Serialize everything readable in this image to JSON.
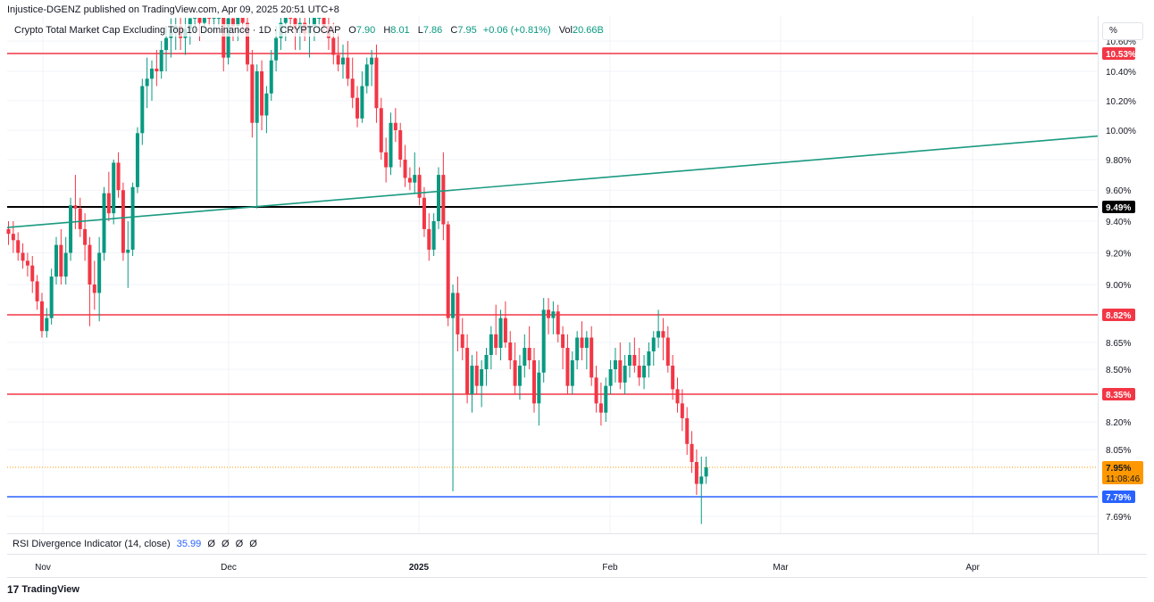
{
  "header": {
    "published_line": "Injustice-DGENZ published on TradingView.com, Apr 09, 2025 20:51 UTC+8"
  },
  "legend": {
    "symbol": "Crypto Total Market Cap Excluding Top 10 Dominance · 1D · CRYPTOCAP",
    "open_label": "O",
    "open_value": "7.90",
    "high_label": "H",
    "high_value": "8.01",
    "low_label": "L",
    "low_value": "7.86",
    "close_label": "C",
    "close_value": "7.95",
    "change": "+0.06 (+0.81%)",
    "vol_label": "Vol",
    "vol_value": "20.66B"
  },
  "scale_button": "%",
  "indicator": {
    "name": "RSI Divergence Indicator (14, close)",
    "value": "35.99",
    "placeholders": [
      "Ø",
      "Ø",
      "Ø",
      "Ø"
    ]
  },
  "footer": {
    "brand": "TradingView",
    "logo": "17"
  },
  "colors": {
    "up": "#089981",
    "down": "#f23645",
    "red_level": "#f23645",
    "black_level": "#000000",
    "blue_level": "#2962ff",
    "trendline": "#1a9a80",
    "current_price": "#ff9800"
  },
  "chart_data": {
    "type": "candlestick",
    "y_unit": "%",
    "ylim": [
      7.62,
      10.66
    ],
    "y_ticks": [
      "10.60%",
      "10.40%",
      "10.20%",
      "10.00%",
      "9.80%",
      "9.60%",
      "9.40%",
      "9.20%",
      "9.00%",
      "8.65%",
      "8.50%",
      "8.20%",
      "8.05%",
      "7.69%"
    ],
    "x_labels": [
      "Nov",
      "Dec",
      "2025",
      "Feb",
      "Mar",
      "Apr"
    ],
    "horizontal_levels": [
      {
        "value": 10.53,
        "label": "10.53%",
        "color": "#f23645"
      },
      {
        "value": 9.49,
        "label": "9.49%",
        "color": "#000000"
      },
      {
        "value": 8.82,
        "label": "8.82%",
        "color": "#f23645"
      },
      {
        "value": 8.35,
        "label": "8.35%",
        "color": "#f23645"
      },
      {
        "value": 7.79,
        "label": "7.79%",
        "color": "#2962ff"
      }
    ],
    "current_price": {
      "value": 7.95,
      "label": "7.95%",
      "countdown": "11:08:46"
    },
    "trendline": {
      "start": {
        "date": "Oct 24",
        "value": 9.36
      },
      "end": {
        "date": "Apr 20",
        "value": 9.96
      }
    },
    "candles_note": "Approximate daily OHLC read from the chart; dates are implicit sequential days starting Oct 24",
    "candles": [
      [
        9.35,
        9.4,
        9.25,
        9.32
      ],
      [
        9.32,
        9.4,
        9.2,
        9.28
      ],
      [
        9.28,
        9.33,
        9.15,
        9.2
      ],
      [
        9.2,
        9.26,
        9.1,
        9.15
      ],
      [
        9.15,
        9.2,
        9.05,
        9.12
      ],
      [
        9.12,
        9.18,
        8.95,
        9.02
      ],
      [
        9.02,
        9.06,
        8.85,
        8.9
      ],
      [
        8.9,
        8.95,
        8.68,
        8.72
      ],
      [
        8.72,
        8.86,
        8.68,
        8.8
      ],
      [
        8.8,
        9.1,
        8.76,
        9.05
      ],
      [
        9.05,
        9.3,
        9.0,
        9.25
      ],
      [
        9.25,
        9.35,
        9.0,
        9.05
      ],
      [
        9.05,
        9.3,
        9.0,
        9.2
      ],
      [
        9.2,
        9.55,
        9.15,
        9.5
      ],
      [
        9.5,
        9.7,
        9.35,
        9.48
      ],
      [
        9.48,
        9.55,
        9.3,
        9.35
      ],
      [
        9.35,
        9.45,
        9.15,
        9.25
      ],
      [
        9.25,
        9.3,
        8.75,
        9.0
      ],
      [
        9.0,
        9.15,
        8.85,
        8.95
      ],
      [
        8.95,
        9.3,
        8.78,
        9.2
      ],
      [
        9.2,
        9.62,
        9.15,
        9.58
      ],
      [
        9.58,
        9.72,
        9.4,
        9.45
      ],
      [
        9.45,
        9.8,
        9.38,
        9.78
      ],
      [
        9.78,
        9.85,
        9.55,
        9.6
      ],
      [
        9.6,
        9.65,
        9.15,
        9.2
      ],
      [
        9.2,
        9.4,
        8.98,
        9.22
      ],
      [
        9.22,
        9.65,
        9.18,
        9.62
      ],
      [
        9.62,
        10.02,
        9.58,
        9.98
      ],
      [
        9.98,
        10.35,
        9.9,
        10.3
      ],
      [
        10.3,
        10.5,
        10.15,
        10.35
      ],
      [
        10.35,
        10.48,
        10.2,
        10.42
      ],
      [
        10.42,
        10.55,
        10.3,
        10.4
      ],
      [
        10.4,
        10.6,
        10.35,
        10.55
      ],
      [
        10.55,
        10.7,
        10.4,
        10.62
      ],
      [
        10.62,
        10.75,
        10.5,
        10.68
      ],
      [
        10.68,
        10.8,
        10.55,
        10.7
      ],
      [
        10.7,
        10.82,
        10.55,
        10.62
      ],
      [
        10.62,
        10.78,
        10.52,
        10.68
      ],
      [
        10.68,
        10.85,
        10.58,
        10.75
      ],
      [
        10.75,
        10.9,
        10.65,
        10.8
      ],
      [
        10.8,
        10.92,
        10.6,
        10.72
      ],
      [
        10.72,
        10.9,
        10.65,
        10.85
      ],
      [
        10.85,
        10.95,
        10.7,
        10.78
      ],
      [
        10.78,
        10.88,
        10.65,
        10.82
      ],
      [
        10.82,
        10.95,
        10.7,
        10.88
      ],
      [
        10.88,
        10.95,
        10.4,
        10.5
      ],
      [
        10.5,
        10.8,
        10.45,
        10.75
      ],
      [
        10.75,
        10.85,
        10.6,
        10.7
      ],
      [
        10.7,
        10.85,
        10.6,
        10.78
      ],
      [
        10.78,
        10.9,
        10.65,
        10.72
      ],
      [
        10.72,
        10.85,
        10.4,
        10.45
      ],
      [
        10.45,
        10.55,
        9.95,
        10.05
      ],
      [
        10.05,
        10.45,
        9.48,
        10.4
      ],
      [
        10.4,
        10.48,
        10.0,
        10.1
      ],
      [
        10.1,
        10.3,
        9.98,
        10.25
      ],
      [
        10.25,
        10.55,
        10.2,
        10.48
      ],
      [
        10.48,
        10.7,
        10.4,
        10.62
      ],
      [
        10.62,
        10.8,
        10.55,
        10.72
      ],
      [
        10.72,
        10.85,
        10.6,
        10.8
      ],
      [
        10.8,
        10.9,
        10.68,
        10.75
      ],
      [
        10.75,
        10.85,
        10.55,
        10.68
      ],
      [
        10.68,
        10.82,
        10.55,
        10.72
      ],
      [
        10.72,
        10.88,
        10.6,
        10.65
      ],
      [
        10.65,
        10.78,
        10.5,
        10.7
      ],
      [
        10.7,
        10.85,
        10.6,
        10.78
      ],
      [
        10.78,
        10.9,
        10.65,
        10.82
      ],
      [
        10.82,
        10.88,
        10.65,
        10.7
      ],
      [
        10.7,
        10.82,
        10.55,
        10.62
      ],
      [
        10.62,
        10.72,
        10.45,
        10.52
      ],
      [
        10.52,
        10.65,
        10.4,
        10.45
      ],
      [
        10.45,
        10.58,
        10.35,
        10.5
      ],
      [
        10.5,
        10.6,
        10.3,
        10.35
      ],
      [
        10.35,
        10.5,
        10.15,
        10.22
      ],
      [
        10.22,
        10.3,
        10.02,
        10.08
      ],
      [
        10.08,
        10.4,
        10.05,
        10.3
      ],
      [
        10.3,
        10.5,
        10.25,
        10.45
      ],
      [
        10.45,
        10.55,
        10.3,
        10.5
      ],
      [
        10.5,
        10.58,
        10.05,
        10.15
      ],
      [
        10.15,
        10.22,
        9.8,
        9.85
      ],
      [
        9.85,
        9.95,
        9.65,
        9.75
      ],
      [
        9.75,
        10.12,
        9.7,
        10.05
      ],
      [
        10.05,
        10.15,
        9.92,
        10.0
      ],
      [
        10.0,
        10.05,
        9.75,
        9.8
      ],
      [
        9.8,
        9.9,
        9.62,
        9.68
      ],
      [
        9.68,
        9.75,
        9.6,
        9.65
      ],
      [
        9.65,
        9.85,
        9.58,
        9.7
      ],
      [
        9.7,
        9.75,
        9.5,
        9.55
      ],
      [
        9.55,
        9.62,
        9.3,
        9.35
      ],
      [
        9.35,
        9.45,
        9.15,
        9.22
      ],
      [
        9.22,
        9.45,
        9.18,
        9.4
      ],
      [
        9.4,
        9.75,
        9.35,
        9.7
      ],
      [
        9.7,
        9.85,
        9.28,
        9.38
      ],
      [
        9.38,
        9.4,
        8.75,
        8.8
      ],
      [
        8.8,
        9.0,
        7.82,
        8.95
      ],
      [
        8.95,
        9.05,
        8.6,
        8.7
      ],
      [
        8.7,
        8.8,
        8.55,
        8.62
      ],
      [
        8.62,
        8.7,
        8.3,
        8.35
      ],
      [
        8.35,
        8.58,
        8.25,
        8.52
      ],
      [
        8.52,
        8.6,
        8.35,
        8.4
      ],
      [
        8.4,
        8.55,
        8.28,
        8.5
      ],
      [
        8.5,
        8.62,
        8.4,
        8.58
      ],
      [
        8.58,
        8.75,
        8.5,
        8.7
      ],
      [
        8.7,
        8.88,
        8.58,
        8.62
      ],
      [
        8.62,
        8.85,
        8.55,
        8.8
      ],
      [
        8.8,
        8.9,
        8.62,
        8.65
      ],
      [
        8.65,
        8.72,
        8.5,
        8.55
      ],
      [
        8.55,
        8.65,
        8.35,
        8.4
      ],
      [
        8.4,
        8.58,
        8.32,
        8.52
      ],
      [
        8.52,
        8.7,
        8.45,
        8.62
      ],
      [
        8.62,
        8.75,
        8.5,
        8.55
      ],
      [
        8.55,
        8.62,
        8.25,
        8.3
      ],
      [
        8.3,
        8.55,
        8.18,
        8.48
      ],
      [
        8.48,
        8.92,
        8.42,
        8.85
      ],
      [
        8.85,
        8.92,
        8.7,
        8.8
      ],
      [
        8.8,
        8.9,
        8.7,
        8.84
      ],
      [
        8.84,
        8.88,
        8.65,
        8.7
      ],
      [
        8.7,
        8.75,
        8.5,
        8.62
      ],
      [
        8.62,
        8.7,
        8.35,
        8.4
      ],
      [
        8.4,
        8.6,
        8.35,
        8.55
      ],
      [
        8.55,
        8.72,
        8.5,
        8.68
      ],
      [
        8.68,
        8.78,
        8.55,
        8.62
      ],
      [
        8.62,
        8.72,
        8.5,
        8.68
      ],
      [
        8.68,
        8.75,
        8.4,
        8.45
      ],
      [
        8.45,
        8.52,
        8.25,
        8.3
      ],
      [
        8.3,
        8.42,
        8.18,
        8.25
      ],
      [
        8.25,
        8.45,
        8.2,
        8.4
      ],
      [
        8.4,
        8.55,
        8.35,
        8.5
      ],
      [
        8.5,
        8.62,
        8.42,
        8.55
      ],
      [
        8.55,
        8.65,
        8.38,
        8.42
      ],
      [
        8.42,
        8.58,
        8.35,
        8.52
      ],
      [
        8.52,
        8.65,
        8.45,
        8.58
      ],
      [
        8.58,
        8.68,
        8.48,
        8.52
      ],
      [
        8.52,
        8.62,
        8.4,
        8.45
      ],
      [
        8.45,
        8.58,
        8.38,
        8.52
      ],
      [
        8.52,
        8.65,
        8.45,
        8.6
      ],
      [
        8.6,
        8.72,
        8.52,
        8.68
      ],
      [
        8.68,
        8.85,
        8.62,
        8.72
      ],
      [
        8.72,
        8.8,
        8.55,
        8.68
      ],
      [
        8.68,
        8.75,
        8.48,
        8.52
      ],
      [
        8.52,
        8.58,
        8.32,
        8.38
      ],
      [
        8.38,
        8.45,
        8.25,
        8.3
      ],
      [
        8.3,
        8.38,
        8.15,
        8.22
      ],
      [
        8.22,
        8.28,
        8.02,
        8.08
      ],
      [
        8.08,
        8.15,
        7.92,
        7.98
      ],
      [
        7.98,
        8.05,
        7.8,
        7.86
      ],
      [
        7.86,
        8.01,
        7.65,
        7.9
      ],
      [
        7.9,
        8.01,
        7.86,
        7.95
      ]
    ]
  }
}
